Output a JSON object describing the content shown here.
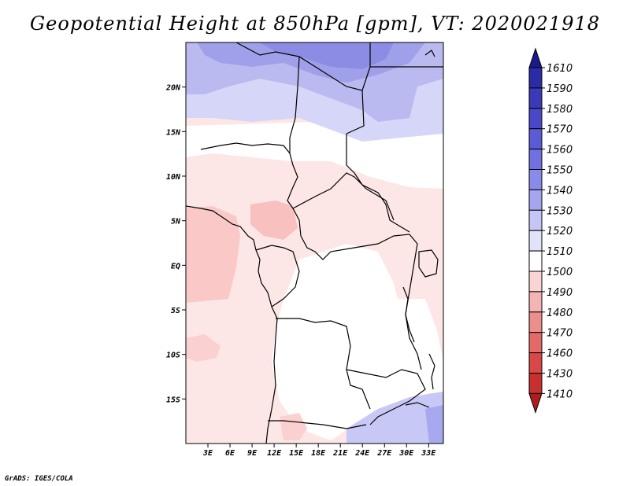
{
  "title": "Geopotential Height at 850hPa [gpm], VT: 2020021918",
  "footer": "GrADS: IGES/COLA",
  "map": {
    "lon_range": [
      0,
      35
    ],
    "lat_range": [
      -20,
      25
    ],
    "lat_ticks": [
      {
        "value": 20,
        "label": "20N"
      },
      {
        "value": 15,
        "label": "15N"
      },
      {
        "value": 10,
        "label": "10N"
      },
      {
        "value": 5,
        "label": "5N"
      },
      {
        "value": 0,
        "label": "EQ"
      },
      {
        "value": -5,
        "label": "5S"
      },
      {
        "value": -10,
        "label": "10S"
      },
      {
        "value": -15,
        "label": "15S"
      }
    ],
    "lon_ticks": [
      {
        "value": 3,
        "label": "3E"
      },
      {
        "value": 6,
        "label": "6E"
      },
      {
        "value": 9,
        "label": "9E"
      },
      {
        "value": 12,
        "label": "12E"
      },
      {
        "value": 15,
        "label": "15E"
      },
      {
        "value": 18,
        "label": "18E"
      },
      {
        "value": 21,
        "label": "21E"
      },
      {
        "value": 24,
        "label": "24E"
      },
      {
        "value": 27,
        "label": "27E"
      },
      {
        "value": 30,
        "label": "30E"
      },
      {
        "value": 33,
        "label": "33E"
      }
    ]
  },
  "colorbar": {
    "levels": [
      "1610",
      "1590",
      "1580",
      "1570",
      "1560",
      "1550",
      "1540",
      "1530",
      "1520",
      "1510",
      "1500",
      "1490",
      "1480",
      "1470",
      "1460",
      "1430",
      "1410"
    ],
    "colors": [
      "#1a1a8c",
      "#2b2ba6",
      "#3a3ab8",
      "#4848c8",
      "#5b5bd6",
      "#7070e0",
      "#8a8ae8",
      "#a6a6ef",
      "#c6c6f6",
      "#e2e2fb",
      "#ffffff",
      "#fbd4d4",
      "#f5b4b4",
      "#ed8e8e",
      "#e46a6a",
      "#d94848",
      "#c83030",
      "#b01c1c"
    ]
  }
}
